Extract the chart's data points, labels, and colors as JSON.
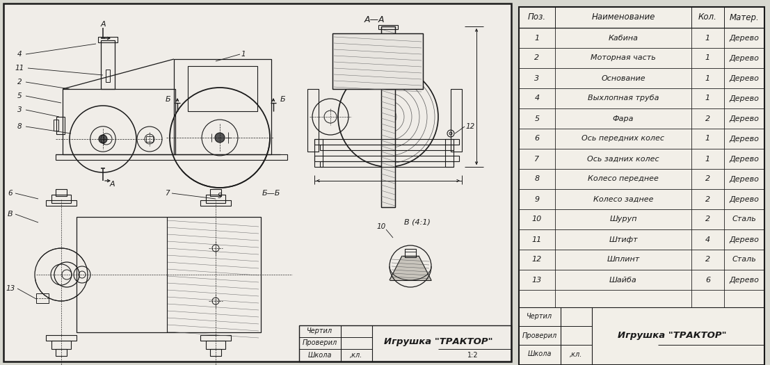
{
  "bg_color": "#d8d8d0",
  "inner_bg": "#f0ede8",
  "line_color": "#1a1a1a",
  "title": "Игрушка \"ТРАКТОР\"",
  "scale": "1:2",
  "table_headers": [
    "Поз.",
    "Наименование",
    "Кол.",
    "Матер."
  ],
  "table_rows": [
    [
      "1",
      "Кабина",
      "1",
      "Дерево"
    ],
    [
      "2",
      "Моторная часть",
      "1",
      "Дерево"
    ],
    [
      "3",
      "Основание",
      "1",
      "Дерево"
    ],
    [
      "4",
      "Выхлопная труба",
      "1",
      "Дерево"
    ],
    [
      "5",
      "Фара",
      "2",
      "Дерево"
    ],
    [
      "6",
      "Ось передних колес",
      "1",
      "Дерево"
    ],
    [
      "7",
      "Ось задних колес",
      "1",
      "Дерево"
    ],
    [
      "8",
      "Колесо переднее",
      "2",
      "Дерево"
    ],
    [
      "9",
      "Колесо заднее",
      "2",
      "Дерево"
    ],
    [
      "10",
      "Шуруп",
      "2",
      "Сталь"
    ],
    [
      "11",
      "Штифт",
      "4",
      "Дерево"
    ],
    [
      "12",
      "Шплинт",
      "2",
      "Сталь"
    ],
    [
      "13",
      "Шайба",
      "6",
      "Дерево"
    ]
  ],
  "font_size_table": 8.0,
  "font_size_stamp": 7.0,
  "font_size_label": 7.5,
  "font_size_title": 9.5
}
